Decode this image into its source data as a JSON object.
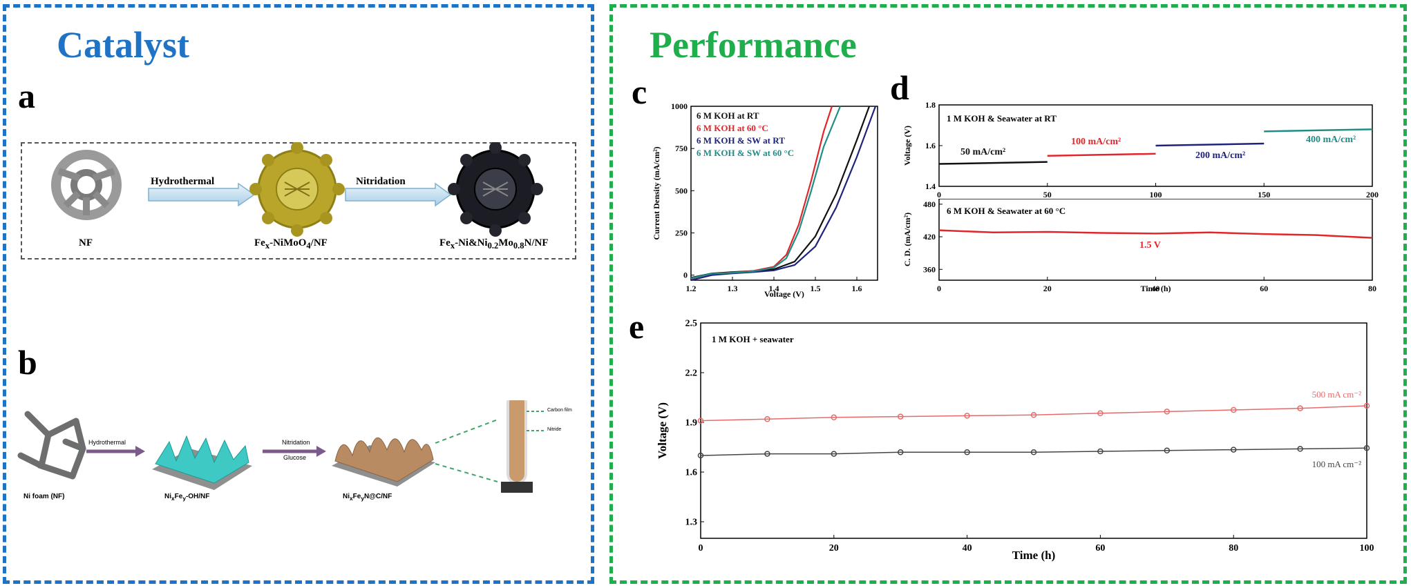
{
  "colors": {
    "catalyst_border": "#1e73c6",
    "performance_border": "#1fae4b",
    "catalyst_title": "#1e73c6",
    "performance_title": "#1fae4b",
    "red": "#e0262a",
    "black": "#111111",
    "navy": "#1d237a",
    "teal": "#1f8c86",
    "pink": "#e56a6a",
    "gray": "#444444"
  },
  "left": {
    "title": "Catalyst",
    "panel_a": {
      "letter": "a",
      "step1": "Hydrothermal",
      "step2": "Nitridation",
      "item1": "NF",
      "item2_html": "Fe<sub>x</sub>-NiMoO<sub>4</sub>/NF",
      "item3_html": "Fe<sub>x</sub>-Ni&amp;Ni<sub>0.2</sub>Mo<sub>0.8</sub>N/NF"
    },
    "panel_b": {
      "letter": "b",
      "step1": "Hydrothermal",
      "step2a": "Nitridation",
      "step2b": "Glucose",
      "item1": "Ni foam (NF)",
      "item2_html": "Ni<sub>x</sub>Fe<sub>y</sub>-OH/NF",
      "item3_html": "Ni<sub>x</sub>Fe<sub>y</sub>N@C/NF",
      "callout1": "Carbon film",
      "callout2": "Nitride"
    }
  },
  "right": {
    "title": "Performance",
    "letter_c": "c",
    "letter_d": "d",
    "letter_e": "e"
  },
  "chart_data": [
    {
      "panel": "c",
      "type": "line",
      "xlabel": "Voltage (V)",
      "ylabel": "Current Density (mA/cm²)",
      "xlim": [
        1.2,
        1.65
      ],
      "ylim": [
        -30,
        1000
      ],
      "xticks": [
        1.2,
        1.3,
        1.4,
        1.5,
        1.6
      ],
      "yticks": [
        0,
        250,
        500,
        750,
        1000
      ],
      "legend": "top-left",
      "series": [
        {
          "name": "6 M KOH at RT",
          "color": "#111111",
          "x": [
            1.2,
            1.25,
            1.3,
            1.35,
            1.4,
            1.45,
            1.5,
            1.55,
            1.6,
            1.63
          ],
          "y": [
            -15,
            10,
            18,
            25,
            35,
            80,
            230,
            480,
            800,
            1000
          ]
        },
        {
          "name": "6 M KOH at 60 °C",
          "color": "#e0262a",
          "x": [
            1.2,
            1.25,
            1.3,
            1.35,
            1.4,
            1.43,
            1.46,
            1.49,
            1.52,
            1.54
          ],
          "y": [
            -20,
            8,
            15,
            25,
            50,
            120,
            300,
            560,
            850,
            1000
          ]
        },
        {
          "name": "6 M KOH & SW at RT",
          "color": "#1d237a",
          "x": [
            1.2,
            1.25,
            1.3,
            1.35,
            1.4,
            1.45,
            1.5,
            1.55,
            1.6,
            1.645
          ],
          "y": [
            -30,
            0,
            10,
            18,
            28,
            60,
            170,
            400,
            700,
            1000
          ]
        },
        {
          "name": "6 M KOH & SW at 60 °C",
          "color": "#1f8c86",
          "x": [
            1.2,
            1.25,
            1.3,
            1.35,
            1.4,
            1.43,
            1.46,
            1.49,
            1.52,
            1.56
          ],
          "y": [
            -18,
            8,
            14,
            22,
            45,
            100,
            260,
            500,
            760,
            1000
          ]
        }
      ]
    },
    {
      "panel": "d-top",
      "type": "line",
      "annotation": "1 M KOH & Seawater at RT",
      "xlabel": "",
      "ylabel": "Voltage (V)",
      "xlim": [
        0,
        200
      ],
      "ylim": [
        1.4,
        1.8
      ],
      "xticks": [
        0,
        50,
        100,
        150,
        200
      ],
      "yticks": [
        1.4,
        1.6,
        1.8
      ],
      "series": [
        {
          "name": "50 mA/cm²",
          "color": "#111111",
          "x": [
            0,
            50
          ],
          "y": [
            1.51,
            1.52
          ]
        },
        {
          "name": "100 mA/cm²",
          "color": "#e0262a",
          "x": [
            50,
            100
          ],
          "y": [
            1.55,
            1.56
          ]
        },
        {
          "name": "200 mA/cm²",
          "color": "#1d237a",
          "x": [
            100,
            150
          ],
          "y": [
            1.6,
            1.61
          ]
        },
        {
          "name": "400 mA/cm²",
          "color": "#1f8c86",
          "x": [
            150,
            200
          ],
          "y": [
            1.67,
            1.68
          ]
        }
      ]
    },
    {
      "panel": "d-bottom",
      "type": "line",
      "annotation": "6 M KOH & Seawater at 60 °C",
      "xlabel": "Time (h)",
      "ylabel": "C. D. (mA/cm²)",
      "xlim": [
        0,
        80
      ],
      "ylim": [
        340,
        490
      ],
      "xticks": [
        0,
        20,
        40,
        60,
        80
      ],
      "yticks": [
        360,
        420,
        480
      ],
      "series": [
        {
          "name": "1.5 V",
          "color": "#e0262a",
          "x": [
            0,
            10,
            20,
            30,
            40,
            50,
            60,
            70,
            80
          ],
          "y": [
            432,
            428,
            429,
            427,
            426,
            428,
            425,
            423,
            418
          ]
        }
      ]
    },
    {
      "panel": "e",
      "type": "line",
      "annotation": "1 M KOH + seawater",
      "xlabel": "Time (h)",
      "ylabel": "Voltage (V)",
      "xlim": [
        0,
        100
      ],
      "ylim": [
        1.2,
        2.5
      ],
      "xticks": [
        0,
        20,
        40,
        60,
        80,
        100
      ],
      "yticks": [
        1.3,
        1.6,
        1.9,
        2.2,
        2.5
      ],
      "series": [
        {
          "name": "500 mA cm⁻²",
          "color": "#e56a6a",
          "x": [
            0,
            10,
            20,
            30,
            40,
            50,
            60,
            70,
            80,
            90,
            100
          ],
          "y": [
            1.91,
            1.92,
            1.93,
            1.935,
            1.94,
            1.945,
            1.955,
            1.965,
            1.975,
            1.985,
            2.0
          ]
        },
        {
          "name": "100 mA cm⁻²",
          "color": "#444444",
          "x": [
            0,
            10,
            20,
            30,
            40,
            50,
            60,
            70,
            80,
            90,
            100
          ],
          "y": [
            1.7,
            1.71,
            1.71,
            1.72,
            1.72,
            1.72,
            1.725,
            1.73,
            1.735,
            1.74,
            1.745
          ]
        }
      ]
    }
  ]
}
